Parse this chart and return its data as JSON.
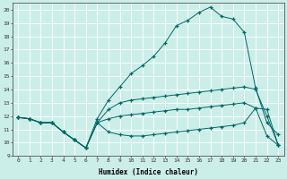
{
  "xlabel": "Humidex (Indice chaleur)",
  "bg_color": "#cceee8",
  "grid_color": "#ffffff",
  "line_color": "#006666",
  "xlim": [
    -0.5,
    23.5
  ],
  "ylim": [
    9,
    20.5
  ],
  "xticks": [
    0,
    1,
    2,
    3,
    4,
    5,
    6,
    7,
    8,
    9,
    10,
    11,
    12,
    13,
    14,
    15,
    16,
    17,
    18,
    19,
    20,
    21,
    22,
    23
  ],
  "yticks": [
    9,
    10,
    11,
    12,
    13,
    14,
    15,
    16,
    17,
    18,
    19,
    20
  ],
  "line1_x": [
    0,
    1,
    2,
    3,
    4,
    5,
    6,
    7,
    8,
    9,
    10,
    11,
    12,
    13,
    14,
    15,
    16,
    17,
    18,
    19,
    20,
    21,
    22,
    23
  ],
  "line1_y": [
    11.9,
    11.8,
    11.5,
    11.5,
    10.8,
    10.2,
    9.6,
    11.8,
    13.2,
    14.2,
    15.2,
    15.8,
    16.5,
    17.5,
    18.8,
    19.2,
    19.8,
    20.2,
    19.5,
    19.3,
    18.3,
    14.1,
    11.5,
    10.6
  ],
  "line2_x": [
    0,
    1,
    2,
    3,
    4,
    5,
    6,
    7,
    8,
    9,
    10,
    11,
    12,
    13,
    14,
    15,
    16,
    17,
    18,
    19,
    20,
    21,
    22,
    23
  ],
  "line2_y": [
    11.9,
    11.8,
    11.5,
    11.5,
    10.8,
    10.2,
    9.6,
    11.5,
    11.8,
    12.0,
    12.1,
    12.2,
    12.3,
    12.4,
    12.5,
    12.5,
    12.6,
    12.7,
    12.8,
    12.9,
    13.0,
    12.6,
    12.5,
    9.8
  ],
  "line3_x": [
    0,
    1,
    2,
    3,
    4,
    5,
    6,
    7,
    8,
    9,
    10,
    11,
    12,
    13,
    14,
    15,
    16,
    17,
    18,
    19,
    20,
    21,
    22,
    23
  ],
  "line3_y": [
    11.9,
    11.8,
    11.5,
    11.5,
    10.8,
    10.2,
    9.6,
    11.5,
    10.8,
    10.6,
    10.5,
    10.5,
    10.6,
    10.7,
    10.8,
    10.9,
    11.0,
    11.1,
    11.2,
    11.3,
    11.5,
    12.6,
    10.5,
    9.8
  ],
  "line4_x": [
    0,
    1,
    2,
    3,
    4,
    5,
    6,
    7,
    8,
    9,
    10,
    11,
    12,
    13,
    14,
    15,
    16,
    17,
    18,
    19,
    20,
    21,
    22,
    23
  ],
  "line4_y": [
    11.9,
    11.8,
    11.5,
    11.5,
    10.8,
    10.2,
    9.6,
    11.5,
    12.5,
    13.0,
    13.2,
    13.3,
    13.4,
    13.5,
    13.6,
    13.7,
    13.8,
    13.9,
    14.0,
    14.1,
    14.2,
    14.0,
    12.0,
    9.8
  ]
}
